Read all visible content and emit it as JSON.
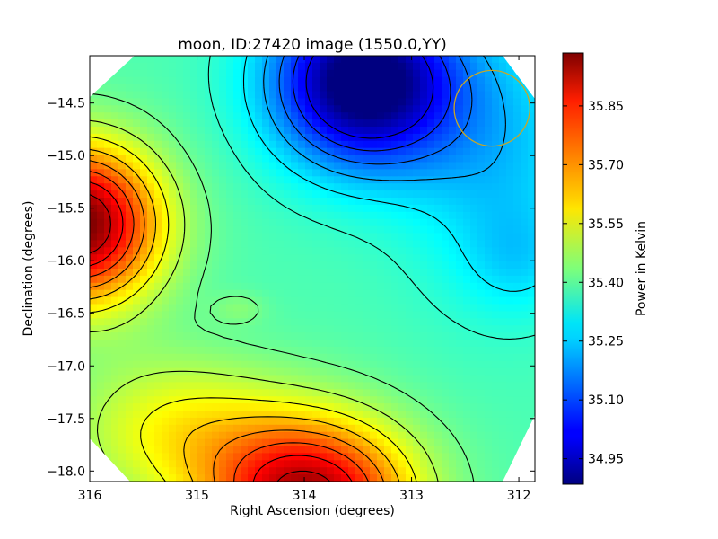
{
  "chart_data": {
    "type": "heatmap",
    "title": "moon, ID:27420 image (1550.0,YY)",
    "xlabel": "Right Ascension (degrees)",
    "ylabel": "Declination (degrees)",
    "xlim": [
      316.0,
      311.85
    ],
    "ylim": [
      -18.1,
      -14.05
    ],
    "x_ticks": [
      316,
      315,
      314,
      313,
      312
    ],
    "x_tick_labels": [
      "316",
      "315",
      "314",
      "313",
      "312"
    ],
    "y_ticks": [
      -14.5,
      -15.0,
      -15.5,
      -16.0,
      -16.5,
      -17.0,
      -17.5,
      -18.0
    ],
    "y_tick_labels": [
      "−14.5",
      "−15.0",
      "−15.5",
      "−16.0",
      "−16.5",
      "−17.0",
      "−17.5",
      "−18.0"
    ],
    "colormap": "jet",
    "colorbar": {
      "label": "Power in Kelvin",
      "range": [
        34.885,
        35.985
      ],
      "ticks": [
        34.95,
        35.1,
        35.25,
        35.4,
        35.55,
        35.7,
        35.85
      ],
      "tick_labels": [
        "34.95",
        "35.10",
        "35.25",
        "35.40",
        "35.55",
        "35.70",
        "35.85"
      ]
    },
    "field_features": [
      {
        "name": "peak-west",
        "ra": 316.05,
        "dec": -15.65,
        "value": 35.985
      },
      {
        "name": "peak-south",
        "ra": 313.95,
        "dec": -18.05,
        "value": 35.93
      },
      {
        "name": "min-north",
        "ra": 313.5,
        "dec": -14.5,
        "value": 34.885
      },
      {
        "name": "saddle-center",
        "ra": 314.5,
        "dec": -16.45,
        "value": 35.4
      },
      {
        "name": "plateau-east",
        "ra": 312.3,
        "dec": -16.0,
        "value": 35.23
      }
    ],
    "contour_levels": [
      35.0,
      35.07,
      35.14,
      35.21,
      35.28,
      35.35,
      35.42,
      35.49,
      35.56,
      35.63,
      35.7,
      35.77,
      35.84,
      35.91
    ],
    "beam_circle": {
      "ra": 312.25,
      "dec": -14.55,
      "radius_deg": 0.36,
      "color": "#c8a826"
    },
    "grid": false,
    "masked_region": "octagon"
  }
}
